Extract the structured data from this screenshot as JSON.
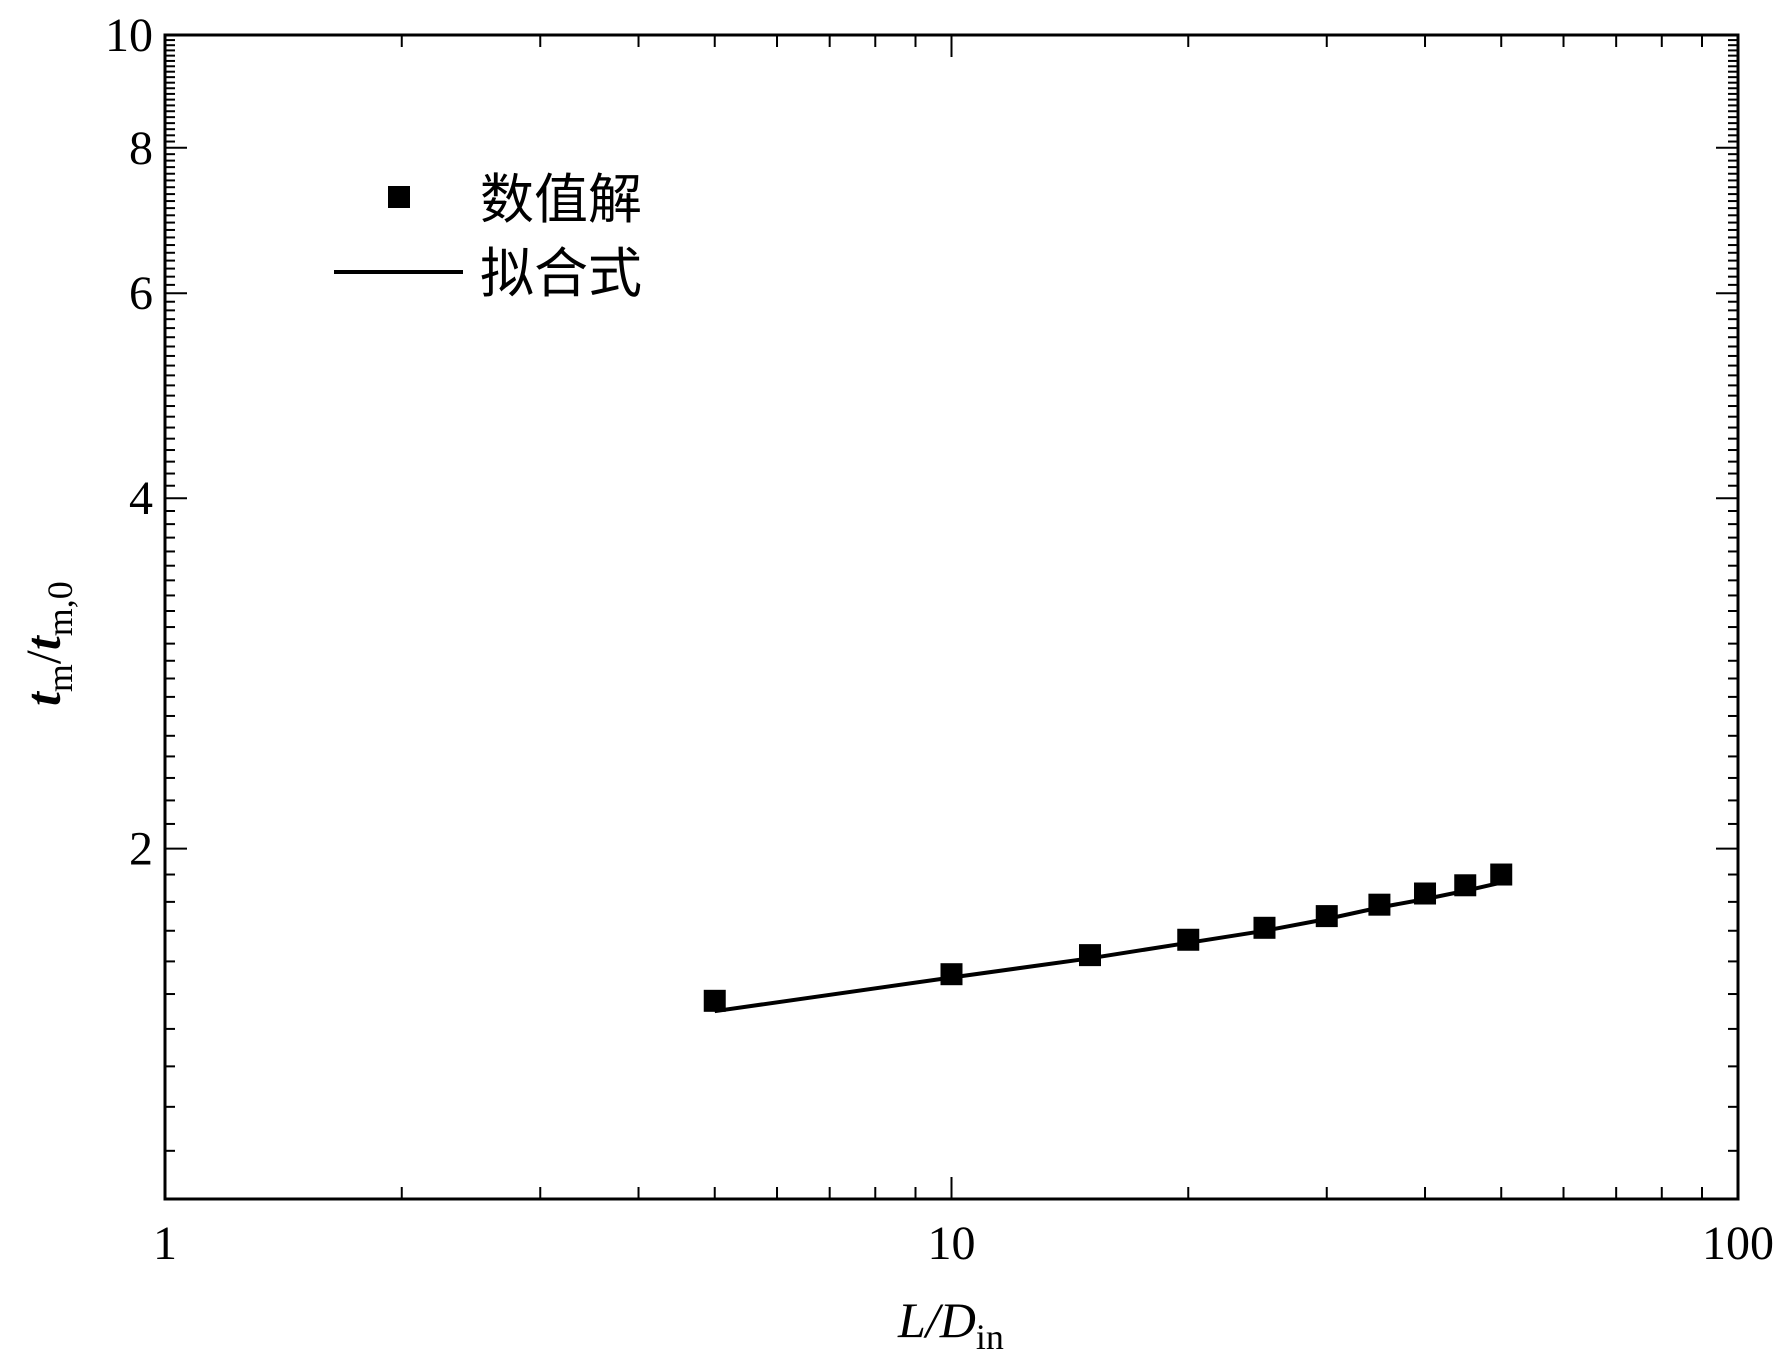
{
  "chart_data": {
    "type": "scatter",
    "xscale": "log",
    "yscale": "log",
    "xlim": [
      1,
      100
    ],
    "ylim": [
      1,
      10
    ],
    "x_major_ticks": [
      {
        "value": 1,
        "label": "1"
      },
      {
        "value": 10,
        "label": "10"
      },
      {
        "value": 100,
        "label": "100"
      }
    ],
    "y_labeled_ticks": [
      {
        "value": 2,
        "label": "2"
      },
      {
        "value": 4,
        "label": "4"
      },
      {
        "value": 6,
        "label": "6"
      },
      {
        "value": 8,
        "label": "8"
      },
      {
        "value": 10,
        "label": "10"
      }
    ],
    "xlabel": {
      "main": "L/D",
      "sub": "in"
    },
    "ylabel": {
      "t1": "t",
      "s1": "m",
      "slash": "/",
      "t2": "t",
      "s2": "m,0"
    },
    "legend": {
      "position": "top-left"
    },
    "series": [
      {
        "name": "数值解",
        "style": "markers",
        "marker": "square",
        "color": "#000000",
        "points": [
          {
            "x": 5,
            "y": 1.48
          },
          {
            "x": 10,
            "y": 1.56
          },
          {
            "x": 15,
            "y": 1.62
          },
          {
            "x": 20,
            "y": 1.67
          },
          {
            "x": 25,
            "y": 1.71
          },
          {
            "x": 30,
            "y": 1.75
          },
          {
            "x": 35,
            "y": 1.79
          },
          {
            "x": 40,
            "y": 1.83
          },
          {
            "x": 45,
            "y": 1.86
          },
          {
            "x": 50,
            "y": 1.9
          }
        ]
      },
      {
        "name": "拟合式",
        "style": "line",
        "color": "#000000",
        "points": [
          {
            "x": 5,
            "y": 1.45
          },
          {
            "x": 10,
            "y": 1.55
          },
          {
            "x": 15,
            "y": 1.61
          },
          {
            "x": 20,
            "y": 1.66
          },
          {
            "x": 25,
            "y": 1.7
          },
          {
            "x": 30,
            "y": 1.74
          },
          {
            "x": 35,
            "y": 1.78
          },
          {
            "x": 40,
            "y": 1.81
          },
          {
            "x": 45,
            "y": 1.84
          },
          {
            "x": 50,
            "y": 1.87
          }
        ]
      }
    ]
  }
}
